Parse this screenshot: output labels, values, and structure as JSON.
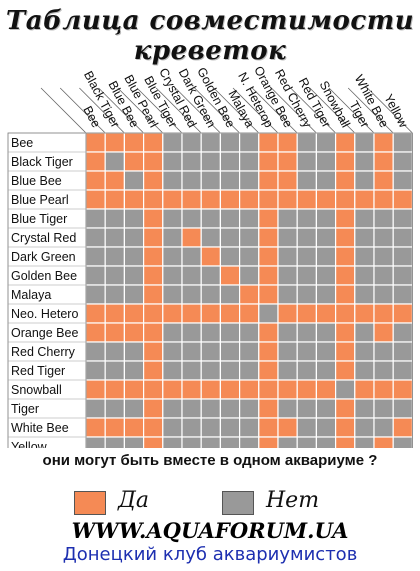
{
  "title": "Таблица совместимости креветок",
  "question": "они могут быть вместе в одном аквариуме ?",
  "legend": {
    "yes_label": "Да",
    "no_label": "Нет"
  },
  "website": "WWW.AQUAFORUM.UA",
  "club": "Донецкий клуб аквариумистов",
  "colors": {
    "yes": "#f58a55",
    "no": "#999999",
    "border": "#ffffff"
  },
  "chart_data": {
    "type": "heatmap",
    "rows": [
      "Bee",
      "Black Tiger",
      "Blue Bee",
      "Blue Pearl",
      "Blue Tiger",
      "Crystal Red",
      "Dark Green",
      "Golden Bee",
      "Malaya",
      "Neo. Hetero",
      "Orange Bee",
      "Red Cherry",
      "Red Tiger",
      "Snowball",
      "Tiger",
      "White Bee",
      "Yellow"
    ],
    "columns": [
      "Bee",
      "Black Tiger",
      "Blue Bee",
      "Blue Pearl",
      "Blue Tiger",
      "Crystal Red",
      "Dark Green",
      "Golden Bee",
      "Malaya",
      "N. Heterop",
      "Orange Bee",
      "Red Cherry",
      "Red Tiger",
      "Snowball",
      "Tiger",
      "White Bee",
      "Yellow"
    ],
    "values": [
      [
        1,
        1,
        1,
        1,
        0,
        0,
        0,
        0,
        0,
        1,
        1,
        0,
        0,
        1,
        0,
        1,
        0
      ],
      [
        1,
        0,
        1,
        1,
        0,
        0,
        0,
        0,
        0,
        1,
        1,
        0,
        0,
        1,
        0,
        1,
        0
      ],
      [
        1,
        1,
        0,
        1,
        0,
        0,
        0,
        0,
        0,
        1,
        1,
        0,
        0,
        1,
        0,
        1,
        0
      ],
      [
        1,
        1,
        1,
        1,
        1,
        1,
        1,
        1,
        1,
        1,
        1,
        1,
        1,
        1,
        1,
        1,
        1
      ],
      [
        0,
        0,
        0,
        1,
        0,
        0,
        0,
        0,
        0,
        1,
        0,
        0,
        0,
        1,
        0,
        0,
        0
      ],
      [
        0,
        0,
        0,
        1,
        0,
        1,
        0,
        0,
        0,
        1,
        0,
        0,
        0,
        1,
        0,
        0,
        0
      ],
      [
        0,
        0,
        0,
        1,
        0,
        0,
        1,
        0,
        0,
        1,
        0,
        0,
        0,
        1,
        0,
        0,
        0
      ],
      [
        0,
        0,
        0,
        1,
        0,
        0,
        0,
        1,
        0,
        1,
        0,
        0,
        0,
        1,
        0,
        0,
        0
      ],
      [
        0,
        0,
        0,
        1,
        0,
        0,
        0,
        0,
        1,
        1,
        0,
        0,
        0,
        1,
        0,
        0,
        0
      ],
      [
        1,
        1,
        1,
        1,
        1,
        1,
        1,
        1,
        1,
        0,
        1,
        1,
        1,
        1,
        1,
        1,
        1
      ],
      [
        1,
        1,
        1,
        1,
        0,
        0,
        0,
        0,
        0,
        1,
        0,
        0,
        0,
        1,
        0,
        1,
        0
      ],
      [
        0,
        0,
        0,
        1,
        0,
        0,
        0,
        0,
        0,
        1,
        0,
        0,
        0,
        1,
        0,
        0,
        0
      ],
      [
        0,
        0,
        0,
        1,
        0,
        0,
        0,
        0,
        0,
        1,
        0,
        0,
        0,
        1,
        0,
        0,
        0
      ],
      [
        1,
        1,
        1,
        1,
        1,
        1,
        1,
        1,
        1,
        1,
        1,
        1,
        1,
        0,
        1,
        1,
        1
      ],
      [
        0,
        0,
        0,
        1,
        0,
        0,
        0,
        0,
        0,
        1,
        0,
        0,
        0,
        1,
        0,
        0,
        0
      ],
      [
        1,
        1,
        1,
        1,
        0,
        0,
        0,
        0,
        0,
        1,
        1,
        0,
        0,
        1,
        0,
        0,
        1
      ],
      [
        0,
        0,
        0,
        1,
        0,
        0,
        0,
        0,
        0,
        1,
        0,
        0,
        0,
        1,
        0,
        1,
        0
      ]
    ]
  }
}
